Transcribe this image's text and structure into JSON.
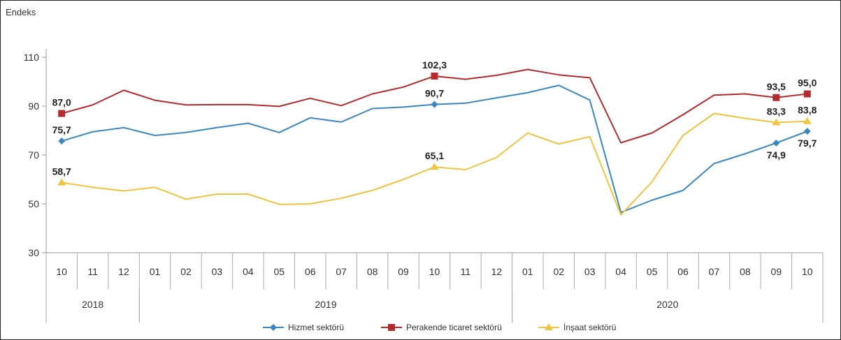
{
  "chart_data": {
    "type": "line",
    "ylabel": "Endeks",
    "ylim": [
      30,
      110
    ],
    "yticks": [
      30,
      50,
      70,
      90,
      110
    ],
    "categories": [
      "10",
      "11",
      "12",
      "01",
      "02",
      "03",
      "04",
      "05",
      "06",
      "07",
      "08",
      "09",
      "10",
      "11",
      "12",
      "01",
      "02",
      "03",
      "04",
      "05",
      "06",
      "07",
      "08",
      "09",
      "10"
    ],
    "years": [
      {
        "label": "2018",
        "start": 0,
        "end": 2
      },
      {
        "label": "2019",
        "start": 3,
        "end": 14
      },
      {
        "label": "2020",
        "start": 15,
        "end": 24
      }
    ],
    "grid": false,
    "legend_position": "bottom",
    "series": [
      {
        "name": "Hizmet sektörü",
        "color": "#3a87c2",
        "marker": "diamond",
        "values": [
          75.7,
          79.5,
          81.2,
          78.0,
          79.2,
          81.2,
          83.0,
          79.2,
          85.2,
          83.5,
          89.0,
          89.6,
          90.7,
          91.2,
          93.4,
          95.5,
          98.5,
          92.5,
          46.5,
          51.5,
          55.5,
          66.5,
          70.5,
          74.9,
          79.7
        ],
        "labels": [
          {
            "i": 0,
            "text": "75,7",
            "pos": "above"
          },
          {
            "i": 12,
            "text": "90,7",
            "pos": "above"
          },
          {
            "i": 23,
            "text": "74,9",
            "pos": "below"
          },
          {
            "i": 24,
            "text": "79,7",
            "pos": "below"
          }
        ]
      },
      {
        "name": "Perakende ticaret sektörü",
        "color": "#b52a2f",
        "marker": "square",
        "values": [
          87.0,
          90.5,
          96.5,
          92.4,
          90.5,
          90.6,
          90.6,
          89.9,
          93.2,
          90.2,
          95.0,
          97.8,
          102.3,
          101.0,
          102.6,
          105.0,
          102.8,
          101.6,
          75.0,
          79.0,
          86.5,
          94.5,
          95.0,
          93.5,
          95.0
        ],
        "labels": [
          {
            "i": 0,
            "text": "87,0",
            "pos": "above"
          },
          {
            "i": 12,
            "text": "102,3",
            "pos": "above"
          },
          {
            "i": 23,
            "text": "93,5",
            "pos": "above"
          },
          {
            "i": 24,
            "text": "95,0",
            "pos": "above"
          }
        ]
      },
      {
        "name": "İnşaat sektörü",
        "color": "#f0c43f",
        "marker": "triangle",
        "values": [
          58.7,
          56.8,
          55.3,
          56.8,
          51.9,
          54.0,
          54.0,
          49.8,
          50.0,
          52.3,
          55.5,
          60.0,
          65.1,
          64.0,
          69.0,
          79.0,
          74.5,
          77.5,
          45.5,
          59.0,
          78.0,
          87.0,
          85.0,
          83.3,
          83.8
        ],
        "labels": [
          {
            "i": 0,
            "text": "58,7",
            "pos": "above"
          },
          {
            "i": 12,
            "text": "65,1",
            "pos": "above"
          },
          {
            "i": 23,
            "text": "83,3",
            "pos": "above"
          },
          {
            "i": 24,
            "text": "83,8",
            "pos": "above"
          }
        ]
      }
    ]
  }
}
